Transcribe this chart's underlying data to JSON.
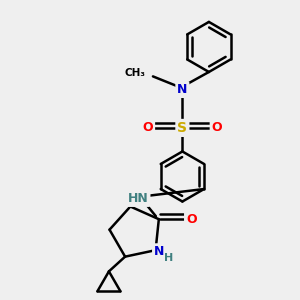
{
  "bg_color": "#efefef",
  "atom_colors": {
    "C": "#000000",
    "N": "#0000cc",
    "O": "#ff0000",
    "S": "#ccaa00",
    "H": "#408080"
  },
  "bond_color": "#000000",
  "bond_width": 1.8,
  "figsize": [
    3.0,
    3.0
  ],
  "dpi": 100
}
